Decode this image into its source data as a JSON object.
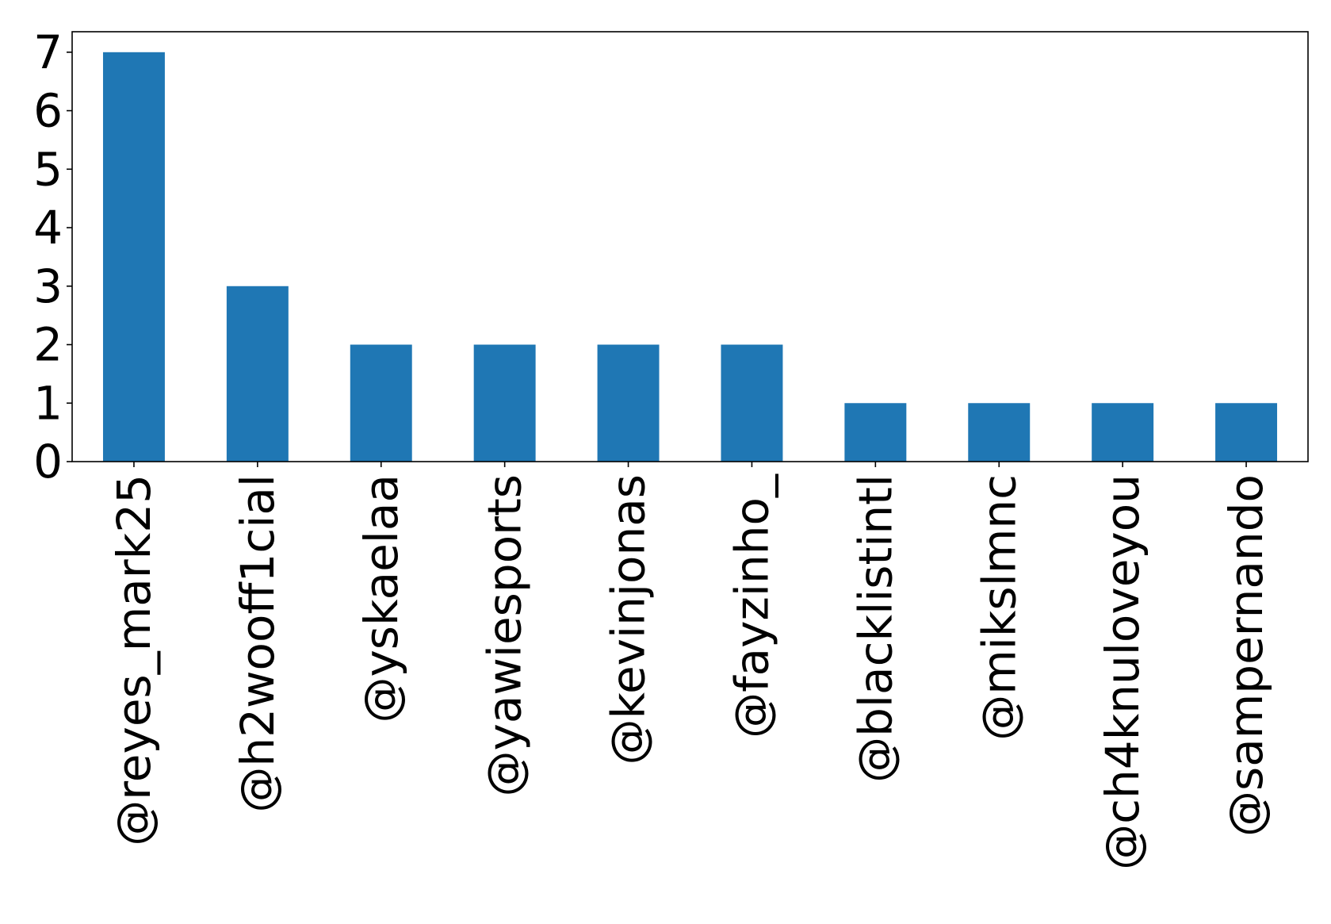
{
  "chart_data": {
    "type": "bar",
    "title": "",
    "xlabel": "",
    "ylabel": "",
    "categories": [
      "@reyes_mark25",
      "@h2wooff1cial",
      "@yskaelaa",
      "@yawiesports",
      "@kevinjonas",
      "@fayzinho_",
      "@blacklistintl",
      "@mikslmnc",
      "@ch4knuloveyou",
      "@sampernando"
    ],
    "values": [
      7,
      3,
      2,
      2,
      2,
      2,
      1,
      1,
      1,
      1
    ],
    "ylim": [
      0,
      7.35
    ],
    "yticks": [
      0,
      1,
      2,
      3,
      4,
      5,
      6,
      7
    ],
    "grid": false,
    "legend": "none",
    "colors": {
      "bar": "#1f77b4",
      "axis": "#000000",
      "text": "#000000"
    }
  }
}
